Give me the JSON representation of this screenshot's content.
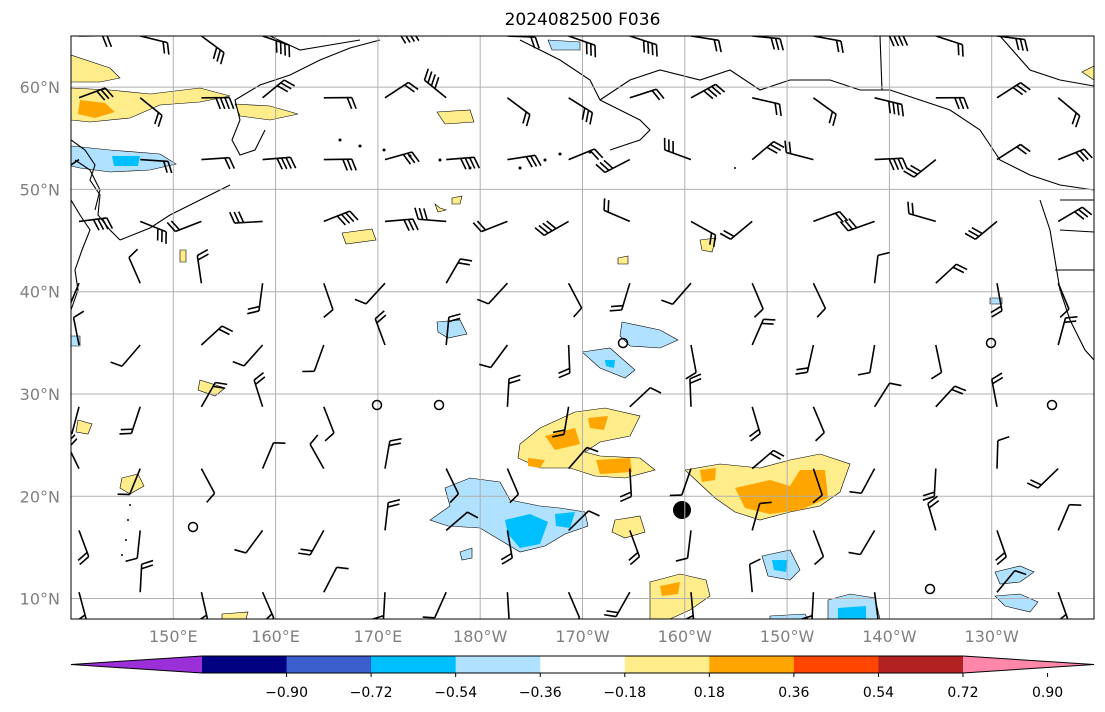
{
  "title": "2024082500 F036",
  "map": {
    "lat_labels": [
      "60°N",
      "50°N",
      "40°N",
      "30°N",
      "20°N",
      "10°N"
    ],
    "lat_values": [
      60,
      50,
      40,
      30,
      20,
      10
    ],
    "lon_labels": [
      "150°E",
      "160°E",
      "170°E",
      "180°W",
      "170°W",
      "160°W",
      "150°W",
      "140°W",
      "130°W"
    ],
    "lon_values": [
      150,
      160,
      170,
      180,
      190,
      200,
      210,
      220,
      230
    ],
    "lon_range": [
      140,
      240
    ],
    "lat_range": [
      8,
      65
    ],
    "grid": true,
    "colors": {
      "land_line": "#000000",
      "grid": "#b0b0b0"
    }
  },
  "colorbar": {
    "ticks": [
      "−0.90",
      "−0.72",
      "−0.54",
      "−0.36",
      "−0.18",
      "0.18",
      "0.36",
      "0.54",
      "0.72",
      "0.90"
    ],
    "colors": [
      "#9b30d8",
      "#000080",
      "#3a5fcd",
      "#00bfff",
      "#b0e2ff",
      "#ffffff",
      "#ffec8b",
      "#ffa500",
      "#ff4500",
      "#b22222",
      "#ff88aa"
    ]
  }
}
